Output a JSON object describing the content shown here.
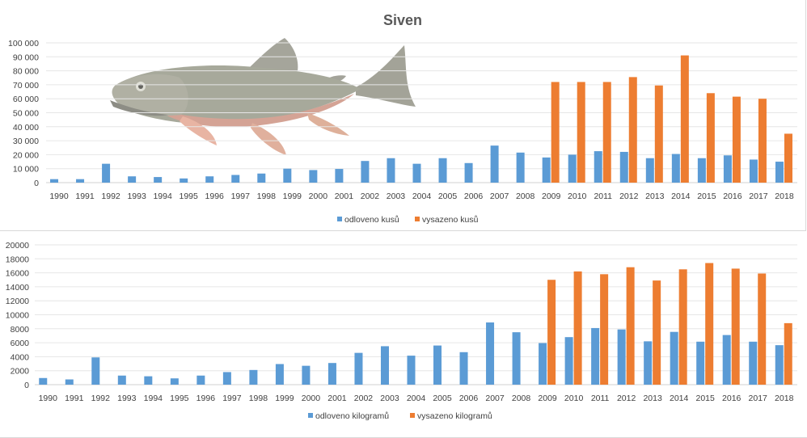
{
  "chart_data": [
    {
      "type": "bar",
      "title": "Siven",
      "xlabel": "",
      "ylabel": "",
      "ylim": [
        0,
        100000
      ],
      "yticks": [
        "0",
        "10 000",
        "20 000",
        "30 000",
        "40 000",
        "50 000",
        "60 000",
        "70 000",
        "80 000",
        "90 000",
        "100 000"
      ],
      "ytick_values": [
        0,
        10000,
        20000,
        30000,
        40000,
        50000,
        60000,
        70000,
        80000,
        90000,
        100000
      ],
      "grid": true,
      "legend_position": "bottom",
      "categories": [
        "1990",
        "1991",
        "1992",
        "1993",
        "1994",
        "1995",
        "1996",
        "1997",
        "1998",
        "1999",
        "2000",
        "2001",
        "2002",
        "2003",
        "2004",
        "2005",
        "2006",
        "2007",
        "2008",
        "2009",
        "2010",
        "2011",
        "2012",
        "2013",
        "2014",
        "2015",
        "2016",
        "2017",
        "2018"
      ],
      "series": [
        {
          "name": "odloveno kusů",
          "color": "#5b9bd5",
          "values": [
            2500,
            2500,
            13500,
            4500,
            4000,
            3000,
            4500,
            5500,
            6500,
            10000,
            9000,
            9800,
            15500,
            17500,
            13500,
            17500,
            14000,
            26500,
            21500,
            18000,
            20000,
            22500,
            22000,
            17500,
            20500,
            17500,
            19500,
            16500,
            15000
          ]
        },
        {
          "name": "vysazeno kusů",
          "color": "#ed7d31",
          "values": [
            0,
            0,
            0,
            0,
            0,
            0,
            0,
            0,
            0,
            0,
            0,
            0,
            0,
            0,
            0,
            0,
            0,
            0,
            0,
            72000,
            72000,
            72000,
            75500,
            69500,
            91000,
            64000,
            61500,
            60000,
            35000
          ]
        }
      ]
    },
    {
      "type": "bar",
      "title": "",
      "xlabel": "",
      "ylabel": "",
      "ylim": [
        0,
        20000
      ],
      "yticks": [
        "0",
        "2000",
        "4000",
        "6000",
        "8000",
        "10000",
        "12000",
        "14000",
        "16000",
        "18000",
        "20000"
      ],
      "ytick_values": [
        0,
        2000,
        4000,
        6000,
        8000,
        10000,
        12000,
        14000,
        16000,
        18000,
        20000
      ],
      "grid": true,
      "legend_position": "bottom",
      "categories": [
        "1990",
        "1991",
        "1992",
        "1993",
        "1994",
        "1995",
        "1996",
        "1997",
        "1998",
        "1999",
        "2000",
        "2001",
        "2002",
        "2003",
        "2004",
        "2005",
        "2006",
        "2007",
        "2008",
        "2009",
        "2010",
        "2011",
        "2012",
        "2013",
        "2014",
        "2015",
        "2016",
        "2017",
        "2018"
      ],
      "series": [
        {
          "name": "odloveno kilogramů",
          "color": "#5b9bd5",
          "values": [
            950,
            750,
            3900,
            1300,
            1200,
            900,
            1300,
            1800,
            2100,
            2950,
            2700,
            3100,
            4550,
            5500,
            4150,
            5600,
            4650,
            8900,
            7500,
            5950,
            6800,
            8100,
            7900,
            6200,
            7550,
            6150,
            7100,
            6150,
            5650
          ]
        },
        {
          "name": "vysazeno kilogramů",
          "color": "#ed7d31",
          "values": [
            0,
            0,
            0,
            0,
            0,
            0,
            0,
            0,
            0,
            0,
            0,
            0,
            0,
            0,
            0,
            0,
            0,
            0,
            0,
            15000,
            16200,
            15800,
            16800,
            14900,
            16500,
            17400,
            16600,
            15900,
            8800
          ]
        }
      ]
    }
  ]
}
